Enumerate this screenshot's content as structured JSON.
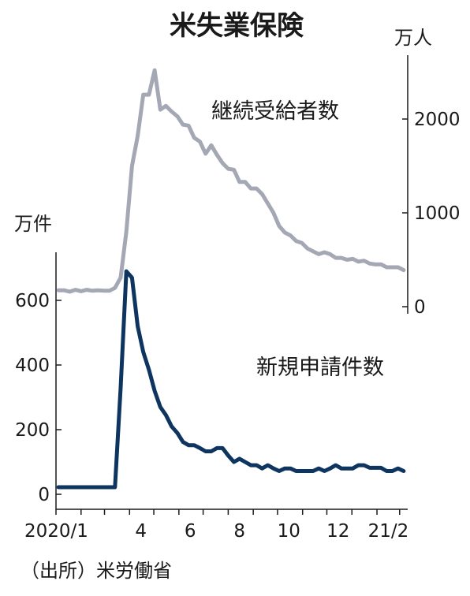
{
  "chart_data": {
    "type": "line",
    "title": "米失業保険",
    "source": "（出所）米労働省",
    "x_tick_labels": [
      "2020/1",
      "4",
      "6",
      "8",
      "10",
      "12",
      "21/2"
    ],
    "x_range_months": [
      "2020-01",
      "2021-03"
    ],
    "left_axis": {
      "unit": "万件",
      "ticks": [
        0,
        200,
        400,
        600
      ],
      "range": [
        0,
        700
      ]
    },
    "right_axis": {
      "unit": "万人",
      "ticks": [
        0,
        1000,
        2000
      ],
      "range": [
        0,
        2600
      ]
    },
    "series": [
      {
        "name": "継続受給者数",
        "axis": "right",
        "color": "#a4a8b5",
        "points": [
          [
            "2020-01-04",
            175
          ],
          [
            "2020-01-11",
            175
          ],
          [
            "2020-01-18",
            160
          ],
          [
            "2020-01-25",
            180
          ],
          [
            "2020-02-01",
            165
          ],
          [
            "2020-02-08",
            180
          ],
          [
            "2020-02-15",
            170
          ],
          [
            "2020-02-22",
            175
          ],
          [
            "2020-02-29",
            170
          ],
          [
            "2020-03-07",
            170
          ],
          [
            "2020-03-14",
            200
          ],
          [
            "2020-03-21",
            310
          ],
          [
            "2020-03-28",
            800
          ],
          [
            "2020-04-04",
            1500
          ],
          [
            "2020-04-11",
            1820
          ],
          [
            "2020-04-18",
            2260
          ],
          [
            "2020-04-25",
            2260
          ],
          [
            "2020-05-02",
            2520
          ],
          [
            "2020-05-09",
            2100
          ],
          [
            "2020-05-16",
            2140
          ],
          [
            "2020-05-23",
            2080
          ],
          [
            "2020-05-30",
            2030
          ],
          [
            "2020-06-06",
            1940
          ],
          [
            "2020-06-13",
            1930
          ],
          [
            "2020-06-20",
            1800
          ],
          [
            "2020-06-27",
            1760
          ],
          [
            "2020-07-04",
            1630
          ],
          [
            "2020-07-11",
            1720
          ],
          [
            "2020-07-18",
            1620
          ],
          [
            "2020-07-25",
            1530
          ],
          [
            "2020-08-01",
            1470
          ],
          [
            "2020-08-08",
            1460
          ],
          [
            "2020-08-15",
            1330
          ],
          [
            "2020-08-22",
            1330
          ],
          [
            "2020-08-29",
            1260
          ],
          [
            "2020-09-05",
            1260
          ],
          [
            "2020-09-12",
            1200
          ],
          [
            "2020-09-19",
            1100
          ],
          [
            "2020-09-26",
            1000
          ],
          [
            "2020-10-03",
            860
          ],
          [
            "2020-10-10",
            790
          ],
          [
            "2020-10-17",
            760
          ],
          [
            "2020-10-24",
            700
          ],
          [
            "2020-10-31",
            680
          ],
          [
            "2020-11-07",
            620
          ],
          [
            "2020-11-14",
            590
          ],
          [
            "2020-11-21",
            560
          ],
          [
            "2020-11-28",
            580
          ],
          [
            "2020-12-05",
            560
          ],
          [
            "2020-12-12",
            520
          ],
          [
            "2020-12-19",
            520
          ],
          [
            "2020-12-26",
            500
          ],
          [
            "2021-01-02",
            510
          ],
          [
            "2021-01-09",
            480
          ],
          [
            "2021-01-16",
            490
          ],
          [
            "2021-01-23",
            460
          ],
          [
            "2021-01-30",
            450
          ],
          [
            "2021-02-06",
            450
          ],
          [
            "2021-02-13",
            420
          ],
          [
            "2021-02-20",
            420
          ],
          [
            "2021-02-27",
            420
          ],
          [
            "2021-03-06",
            390
          ]
        ]
      },
      {
        "name": "新規申請件数",
        "axis": "left",
        "color": "#0e3560",
        "points": [
          [
            "2020-01-04",
            22
          ],
          [
            "2020-01-11",
            22
          ],
          [
            "2020-01-18",
            22
          ],
          [
            "2020-01-25",
            22
          ],
          [
            "2020-02-01",
            22
          ],
          [
            "2020-02-08",
            22
          ],
          [
            "2020-02-15",
            22
          ],
          [
            "2020-02-22",
            22
          ],
          [
            "2020-02-29",
            22
          ],
          [
            "2020-03-07",
            22
          ],
          [
            "2020-03-14",
            22
          ],
          [
            "2020-03-21",
            330
          ],
          [
            "2020-03-28",
            690
          ],
          [
            "2020-04-04",
            670
          ],
          [
            "2020-04-11",
            520
          ],
          [
            "2020-04-18",
            440
          ],
          [
            "2020-04-25",
            385
          ],
          [
            "2020-05-02",
            320
          ],
          [
            "2020-05-09",
            270
          ],
          [
            "2020-05-16",
            245
          ],
          [
            "2020-05-23",
            210
          ],
          [
            "2020-05-30",
            190
          ],
          [
            "2020-06-06",
            162
          ],
          [
            "2020-06-13",
            152
          ],
          [
            "2020-06-20",
            152
          ],
          [
            "2020-06-27",
            143
          ],
          [
            "2020-07-04",
            133
          ],
          [
            "2020-07-11",
            133
          ],
          [
            "2020-07-18",
            143
          ],
          [
            "2020-07-25",
            143
          ],
          [
            "2020-08-01",
            120
          ],
          [
            "2020-08-08",
            100
          ],
          [
            "2020-08-15",
            110
          ],
          [
            "2020-08-22",
            100
          ],
          [
            "2020-08-29",
            90
          ],
          [
            "2020-09-05",
            90
          ],
          [
            "2020-09-12",
            80
          ],
          [
            "2020-09-19",
            90
          ],
          [
            "2020-09-26",
            80
          ],
          [
            "2020-10-03",
            72
          ],
          [
            "2020-10-10",
            80
          ],
          [
            "2020-10-17",
            80
          ],
          [
            "2020-10-24",
            72
          ],
          [
            "2020-10-31",
            72
          ],
          [
            "2020-11-07",
            72
          ],
          [
            "2020-11-14",
            72
          ],
          [
            "2020-11-21",
            80
          ],
          [
            "2020-11-28",
            72
          ],
          [
            "2020-12-05",
            80
          ],
          [
            "2020-12-12",
            90
          ],
          [
            "2020-12-19",
            80
          ],
          [
            "2020-12-26",
            80
          ],
          [
            "2021-01-02",
            80
          ],
          [
            "2021-01-09",
            90
          ],
          [
            "2021-01-16",
            90
          ],
          [
            "2021-01-23",
            82
          ],
          [
            "2021-01-30",
            82
          ],
          [
            "2021-02-06",
            82
          ],
          [
            "2021-02-13",
            72
          ],
          [
            "2021-02-20",
            72
          ],
          [
            "2021-02-27",
            80
          ],
          [
            "2021-03-06",
            72
          ]
        ]
      }
    ],
    "grid": false,
    "legend": "none"
  }
}
